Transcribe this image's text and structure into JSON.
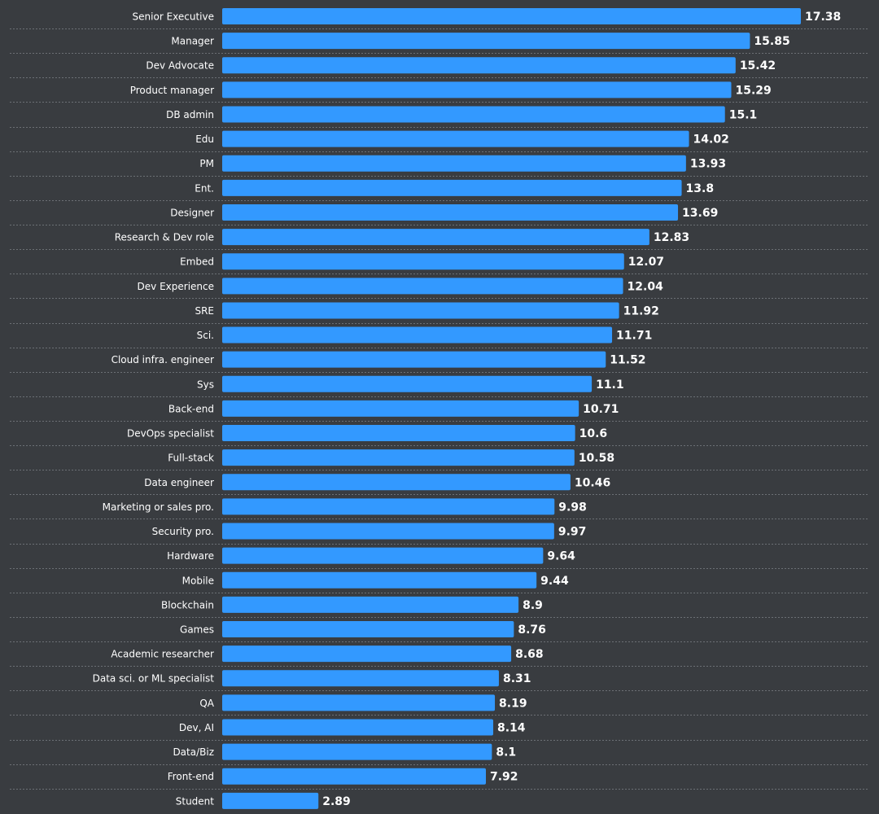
{
  "chart_data": {
    "type": "bar",
    "orientation": "horizontal",
    "title": "",
    "xlabel": "",
    "ylabel": "",
    "xlim": [
      0,
      17.38
    ],
    "grid": false,
    "categories": [
      "Senior Executive",
      "Manager",
      "Dev Advocate",
      "Product manager",
      "DB admin",
      "Edu",
      "PM",
      "Ent.",
      "Designer",
      "Research & Dev role",
      "Embed",
      "Dev Experience",
      "SRE",
      "Sci.",
      "Cloud infra. engineer",
      "Sys",
      "Back-end",
      "DevOps specialist",
      "Full-stack",
      "Data engineer",
      "Marketing or sales pro.",
      "Security pro.",
      "Hardware",
      "Mobile",
      "Blockchain",
      "Games",
      "Academic researcher",
      "Data sci. or ML specialist",
      "QA",
      "Dev, AI",
      "Data/Biz",
      "Front-end",
      "Student"
    ],
    "values": [
      17.38,
      15.85,
      15.42,
      15.29,
      15.1,
      14.02,
      13.93,
      13.8,
      13.69,
      12.83,
      12.07,
      12.04,
      11.92,
      11.71,
      11.52,
      11.1,
      10.71,
      10.6,
      10.58,
      10.46,
      9.98,
      9.97,
      9.64,
      9.44,
      8.9,
      8.76,
      8.68,
      8.31,
      8.19,
      8.14,
      8.1,
      7.92,
      2.89
    ],
    "value_labels": [
      "17.38",
      "15.85",
      "15.42",
      "15.29",
      "15.1",
      "14.02",
      "13.93",
      "13.8",
      "13.69",
      "12.83",
      "12.07",
      "12.04",
      "11.92",
      "11.71",
      "11.52",
      "11.1",
      "10.71",
      "10.6",
      "10.58",
      "10.46",
      "9.98",
      "9.97",
      "9.64",
      "9.44",
      "8.9",
      "8.76",
      "8.68",
      "8.31",
      "8.19",
      "8.14",
      "8.1",
      "7.92",
      "2.89"
    ],
    "colors": {
      "bar": "#3399ff",
      "background": "#393c40",
      "text": "#ffffff",
      "separator": "#6c7075"
    }
  }
}
